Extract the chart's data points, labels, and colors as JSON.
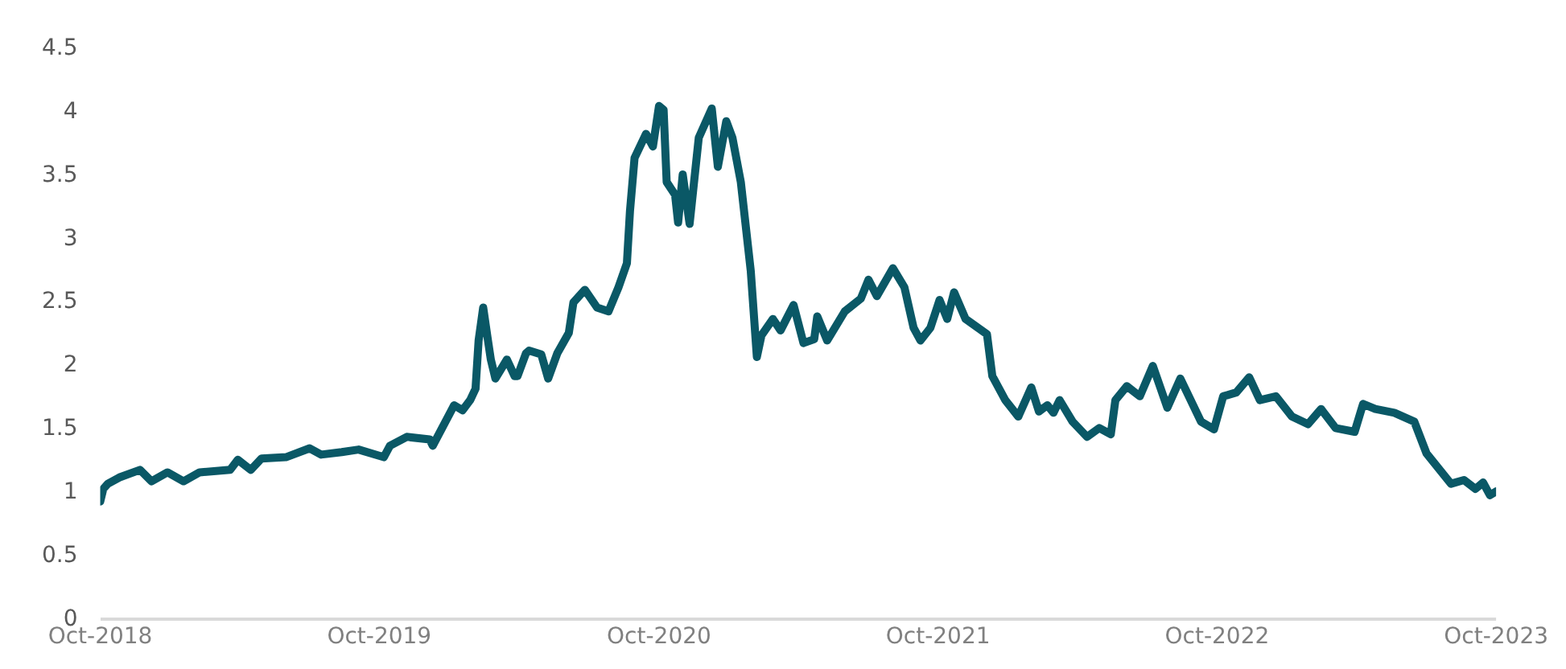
{
  "chart_data": {
    "type": "line",
    "x": [
      "2018-10-01",
      "2018-10-05",
      "2018-10-11",
      "2018-10-26",
      "2018-11-22",
      "2018-12-07",
      "2018-12-28",
      "2019-01-18",
      "2019-02-08",
      "2019-03-20",
      "2019-03-30",
      "2019-04-16",
      "2019-04-30",
      "2019-06-01",
      "2019-07-02",
      "2019-07-17",
      "2019-08-13",
      "2019-09-04",
      "2019-10-07",
      "2019-10-15",
      "2019-11-06",
      "2019-12-06",
      "2019-12-10",
      "2020-01-07",
      "2020-01-18",
      "2020-01-28",
      "2020-02-04",
      "2020-02-08",
      "2020-02-14",
      "2020-02-20",
      "2020-02-24",
      "2020-03-01",
      "2020-03-16",
      "2020-03-26",
      "2020-03-30",
      "2020-04-10",
      "2020-04-14",
      "2020-04-30",
      "2020-05-09",
      "2020-05-21",
      "2020-06-05",
      "2020-06-11",
      "2020-06-26",
      "2020-07-12",
      "2020-07-27",
      "2020-08-09",
      "2020-08-20",
      "2020-08-24",
      "2020-08-30",
      "2020-09-14",
      "2020-09-23",
      "2020-10-01",
      "2020-10-07",
      "2020-10-11",
      "2020-10-22",
      "2020-10-26",
      "2020-11-01",
      "2020-11-10",
      "2020-11-22",
      "2020-12-09",
      "2020-12-17",
      "2020-12-28",
      "2021-01-05",
      "2021-01-16",
      "2021-01-29",
      "2021-02-06",
      "2021-02-12",
      "2021-02-27",
      "2021-03-09",
      "2021-03-26",
      "2021-04-08",
      "2021-04-22",
      "2021-04-26",
      "2021-05-09",
      "2021-06-01",
      "2021-06-22",
      "2021-07-02",
      "2021-07-13",
      "2021-08-03",
      "2021-08-18",
      "2021-08-30",
      "2021-09-08",
      "2021-09-21",
      "2021-10-03",
      "2021-10-13",
      "2021-10-22",
      "2021-11-06",
      "2021-12-04",
      "2021-12-11",
      "2021-12-28",
      "2022-01-14",
      "2022-01-31",
      "2022-02-10",
      "2022-02-21",
      "2022-03-01",
      "2022-03-09",
      "2022-03-26",
      "2022-04-14",
      "2022-04-30",
      "2022-05-15",
      "2022-05-21",
      "2022-06-05",
      "2022-06-22",
      "2022-07-09",
      "2022-07-28",
      "2022-08-14",
      "2022-09-10",
      "2022-09-27",
      "2022-10-09",
      "2022-10-26",
      "2022-11-12",
      "2022-11-26",
      "2022-12-17",
      "2023-01-07",
      "2023-01-28",
      "2023-02-14",
      "2023-03-05",
      "2023-03-30",
      "2023-04-10",
      "2023-04-26",
      "2023-05-21",
      "2023-06-16",
      "2023-07-02",
      "2023-08-03",
      "2023-08-20",
      "2023-09-04",
      "2023-09-14",
      "2023-09-23",
      "2023-10-01"
    ],
    "series": [
      {
        "color": "#0a5866",
        "values": [
          0.93,
          1.03,
          1.07,
          1.12,
          1.18,
          1.09,
          1.16,
          1.09,
          1.16,
          1.18,
          1.26,
          1.18,
          1.27,
          1.28,
          1.35,
          1.3,
          1.32,
          1.34,
          1.28,
          1.37,
          1.44,
          1.42,
          1.37,
          1.69,
          1.65,
          1.73,
          1.82,
          2.2,
          2.46,
          2.21,
          2.05,
          1.9,
          2.05,
          1.92,
          1.92,
          2.1,
          2.12,
          2.09,
          1.9,
          2.1,
          2.26,
          2.5,
          2.6,
          2.46,
          2.43,
          2.62,
          2.81,
          3.22,
          3.64,
          3.83,
          3.73,
          4.05,
          4.02,
          3.45,
          3.35,
          3.13,
          3.51,
          3.12,
          3.8,
          4.03,
          3.57,
          3.93,
          3.8,
          3.45,
          2.75,
          2.07,
          2.24,
          2.37,
          2.28,
          2.48,
          2.18,
          2.21,
          2.39,
          2.2,
          2.43,
          2.53,
          2.68,
          2.55,
          2.77,
          2.62,
          2.3,
          2.2,
          2.3,
          2.52,
          2.37,
          2.58,
          2.37,
          2.25,
          1.92,
          1.73,
          1.6,
          1.83,
          1.64,
          1.69,
          1.63,
          1.73,
          1.56,
          1.44,
          1.51,
          1.46,
          1.73,
          1.84,
          1.76,
          2.0,
          1.67,
          1.9,
          1.56,
          1.5,
          1.76,
          1.79,
          1.91,
          1.73,
          1.76,
          1.6,
          1.54,
          1.66,
          1.51,
          1.48,
          1.7,
          1.66,
          1.63,
          1.56,
          1.31,
          1.07,
          1.1,
          1.03,
          1.08,
          0.98,
          1.01
        ]
      }
    ],
    "xlim": [
      "2018-10-01",
      "2023-10-01"
    ],
    "xticks": [
      {
        "value": "2018-10-01",
        "label": "Oct-2018"
      },
      {
        "value": "2019-10-01",
        "label": "Oct-2019"
      },
      {
        "value": "2020-10-01",
        "label": "Oct-2020"
      },
      {
        "value": "2021-10-01",
        "label": "Oct-2021"
      },
      {
        "value": "2022-10-01",
        "label": "Oct-2022"
      },
      {
        "value": "2023-10-01",
        "label": "Oct-2023"
      }
    ],
    "ylim": [
      0,
      4.5
    ],
    "yticks": [
      0,
      0.5,
      1,
      1.5,
      2,
      2.5,
      3,
      3.5,
      4,
      4.5
    ],
    "grid": false,
    "legend": false,
    "marker": "none",
    "line_style": "solid"
  }
}
